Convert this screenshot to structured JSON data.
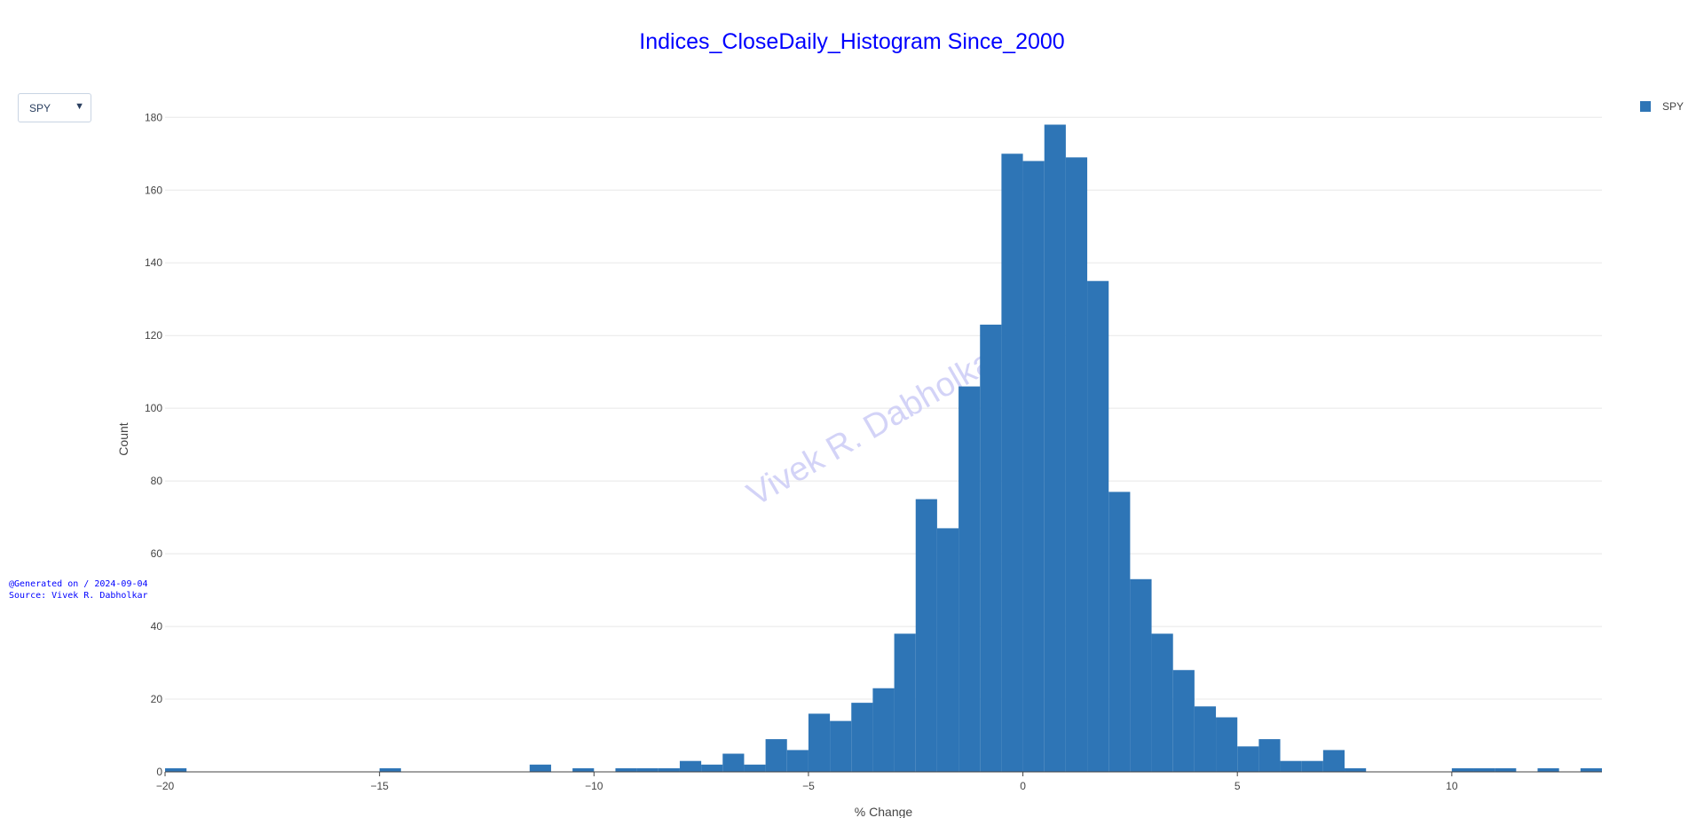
{
  "chart_data": {
    "type": "bar",
    "title": "Indices_CloseDaily_Histogram Since_2000",
    "xlabel": "% Change",
    "ylabel": "Count",
    "xlim": [
      -20,
      13.5
    ],
    "ylim": [
      0,
      183
    ],
    "xticks": [
      -20,
      -15,
      -10,
      -5,
      0,
      5,
      10
    ],
    "yticks": [
      0,
      20,
      40,
      60,
      80,
      100,
      120,
      140,
      160,
      180
    ],
    "bin_width": 0.5,
    "grid": true,
    "legend_position": "top-right",
    "series": [
      {
        "name": "SPY",
        "color": "#2e75b6",
        "bins": [
          {
            "x0": -20,
            "count": 1
          },
          {
            "x0": -15,
            "count": 1
          },
          {
            "x0": -11.5,
            "count": 2
          },
          {
            "x0": -10.5,
            "count": 1
          },
          {
            "x0": -9.5,
            "count": 1
          },
          {
            "x0": -9,
            "count": 1
          },
          {
            "x0": -8.5,
            "count": 1
          },
          {
            "x0": -8,
            "count": 3
          },
          {
            "x0": -7.5,
            "count": 2
          },
          {
            "x0": -7,
            "count": 5
          },
          {
            "x0": -6.5,
            "count": 2
          },
          {
            "x0": -6,
            "count": 9
          },
          {
            "x0": -5.5,
            "count": 6
          },
          {
            "x0": -5,
            "count": 16
          },
          {
            "x0": -4.5,
            "count": 14
          },
          {
            "x0": -4,
            "count": 19
          },
          {
            "x0": -3.5,
            "count": 23
          },
          {
            "x0": -3,
            "count": 38
          },
          {
            "x0": -2.5,
            "count": 75
          },
          {
            "x0": -2,
            "count": 67
          },
          {
            "x0": -1.5,
            "count": 106
          },
          {
            "x0": -1,
            "count": 123
          },
          {
            "x0": -0.5,
            "count": 170
          },
          {
            "x0": 0,
            "count": 168
          },
          {
            "x0": 0.5,
            "count": 178
          },
          {
            "x0": 1,
            "count": 169
          },
          {
            "x0": 1.5,
            "count": 135
          },
          {
            "x0": 2,
            "count": 77
          },
          {
            "x0": 2.5,
            "count": 53
          },
          {
            "x0": 3,
            "count": 38
          },
          {
            "x0": 3.5,
            "count": 28
          },
          {
            "x0": 4,
            "count": 18
          },
          {
            "x0": 4.5,
            "count": 15
          },
          {
            "x0": 5,
            "count": 7
          },
          {
            "x0": 5.5,
            "count": 9
          },
          {
            "x0": 6,
            "count": 3
          },
          {
            "x0": 6.5,
            "count": 3
          },
          {
            "x0": 7,
            "count": 6
          },
          {
            "x0": 7.5,
            "count": 1
          },
          {
            "x0": 10,
            "count": 1
          },
          {
            "x0": 10.5,
            "count": 1
          },
          {
            "x0": 11,
            "count": 1
          },
          {
            "x0": 12,
            "count": 1
          },
          {
            "x0": 13,
            "count": 1
          }
        ]
      }
    ]
  },
  "dropdown": {
    "selected": "SPY",
    "arrow_icon": "triangle-down-icon"
  },
  "watermark": "Vivek R. Dabholkar",
  "footer": {
    "generated": "@Generated on / 2024-09-04",
    "source": "Source: Vivek R. Dabholkar"
  },
  "colors": {
    "title": "#0000ff",
    "bar": "#2e75b6",
    "grid": "#e8e8e8",
    "watermark": "#c8c8f5",
    "note": "#0000ff"
  }
}
